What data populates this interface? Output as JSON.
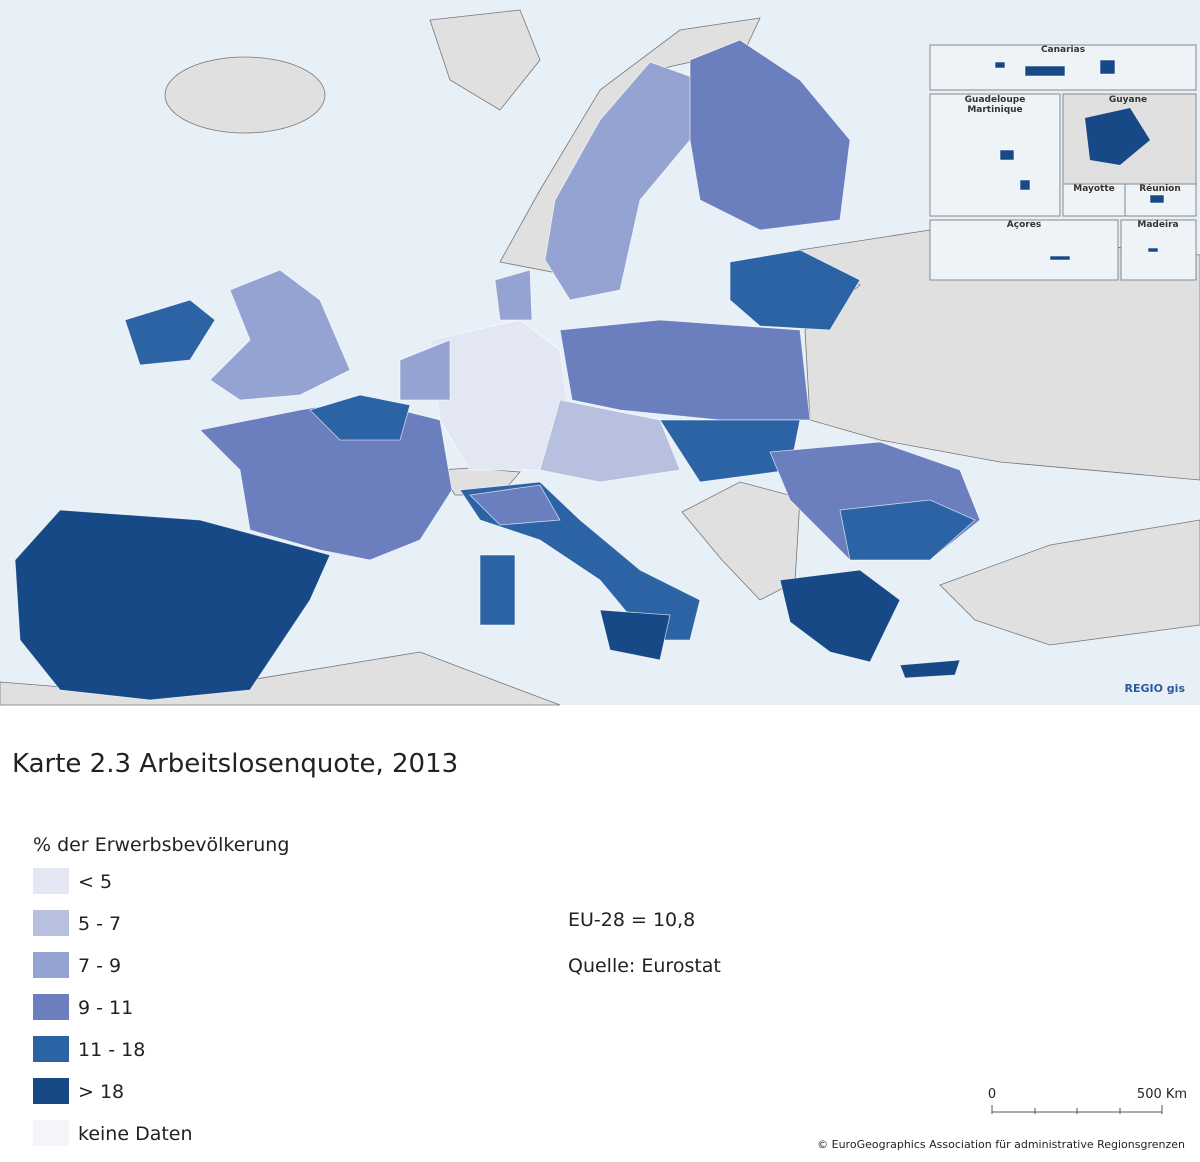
{
  "map": {
    "insets": [
      "Canarias",
      "Guadeloupe",
      "Martinique",
      "Guyane",
      "Mayotte",
      "Réunion",
      "Açores",
      "Madeira"
    ],
    "credit": "REGIO gis"
  },
  "title": "Karte 2.3 Arbeitslosenquote, 2013",
  "legend": {
    "title": "% der Erwerbsbevölkerung",
    "items": [
      {
        "label": "< 5",
        "color": "#e3e6f3"
      },
      {
        "label": "5 - 7",
        "color": "#b8c0e0"
      },
      {
        "label": "7 - 9",
        "color": "#94a3d1"
      },
      {
        "label": "9 - 11",
        "color": "#6b7fbf"
      },
      {
        "label": "11 - 18",
        "color": "#2b63a5"
      },
      {
        "label": "> 18",
        "color": "#164985"
      },
      {
        "label": "keine Daten",
        "color": "#f3f5f8"
      }
    ]
  },
  "notes": [
    "EU-28 = 10,8",
    "Quelle: Eurostat"
  ],
  "scale": {
    "labels": [
      "0",
      "500 Km"
    ]
  },
  "copyright": "© EuroGeographics Association für administrative Regionsgrenzen"
}
